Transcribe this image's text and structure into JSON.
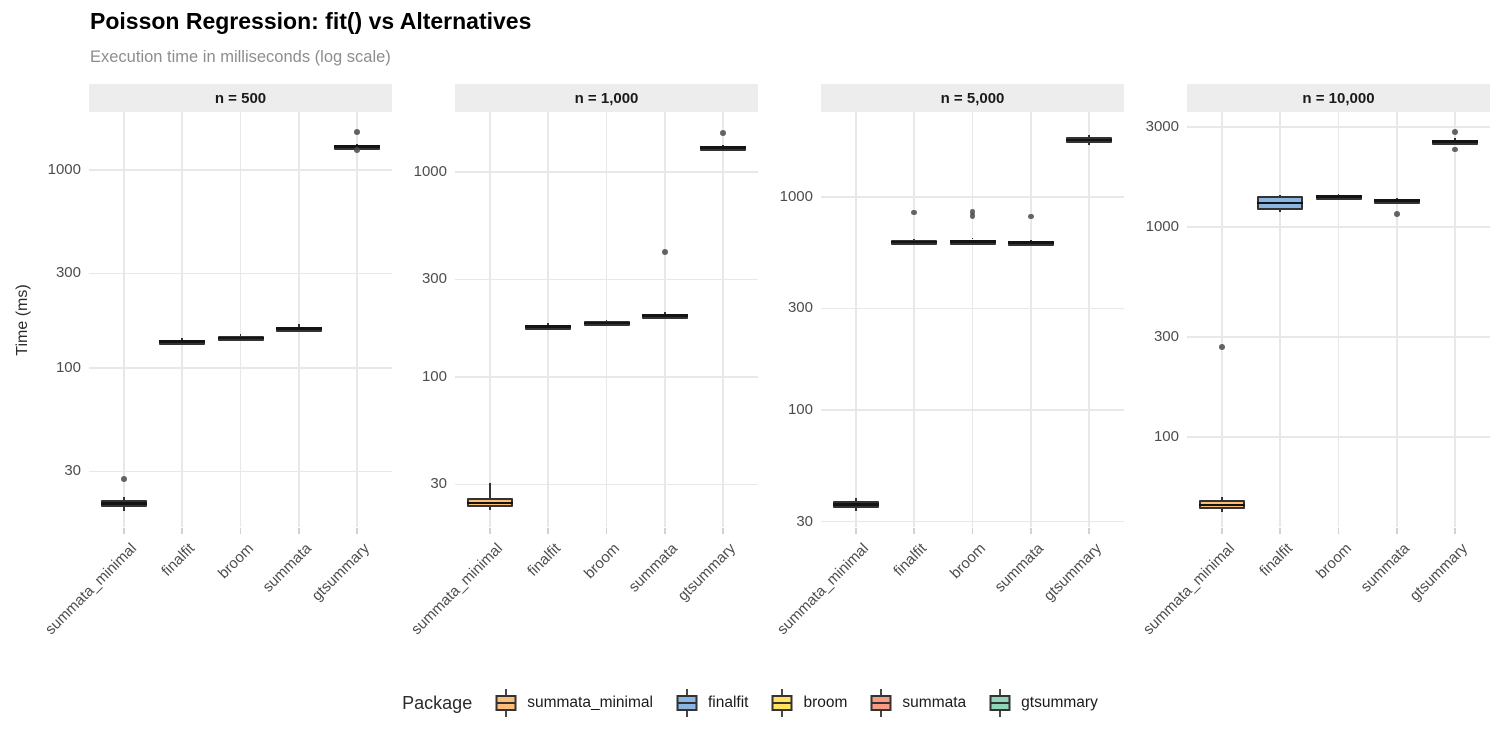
{
  "chart_data": {
    "type": "boxplot",
    "title": "Poisson Regression: fit() vs Alternatives",
    "subtitle": "Execution time in milliseconds (log scale)",
    "ylabel": "Time (ms)",
    "log_scale": true,
    "grid": true,
    "categories": [
      "summata_minimal",
      "finalfit",
      "broom",
      "summata",
      "gtsummary"
    ],
    "palette": {
      "summata_minimal": "#FCBE78",
      "finalfit": "#89B6E2",
      "broom": "#FFE45C",
      "summata": "#FA9A82",
      "gtsummary": "#90D5BA"
    },
    "legend": {
      "title": "Package",
      "position": "bottom",
      "items": [
        "summata_minimal",
        "finalfit",
        "broom",
        "summata",
        "gtsummary"
      ]
    },
    "facets": [
      {
        "label": "n = 500",
        "ylim": [
          15.7,
          1963
        ],
        "yticks": [
          1000,
          300,
          100,
          30
        ],
        "boxes": [
          {
            "package": "summata_minimal",
            "whisker_lo": 19.0,
            "q1": 19.8,
            "median": 20.6,
            "q3": 21.5,
            "whisker_hi": 22.3,
            "outliers": [
              27.5
            ]
          },
          {
            "package": "finalfit",
            "whisker_lo": 130,
            "q1": 133,
            "median": 135.5,
            "q3": 138,
            "whisker_hi": 141,
            "outliers": []
          },
          {
            "package": "broom",
            "whisker_lo": 136,
            "q1": 139,
            "median": 141.5,
            "q3": 144.5,
            "whisker_hi": 148,
            "outliers": []
          },
          {
            "package": "summata",
            "whisker_lo": 151,
            "q1": 155,
            "median": 158,
            "q3": 161.5,
            "whisker_hi": 166,
            "outliers": []
          },
          {
            "package": "gtsummary",
            "whisker_lo": 1280,
            "q1": 1295,
            "median": 1310,
            "q3": 1332,
            "whisker_hi": 1352,
            "outliers": [
              1560,
              1265
            ]
          }
        ]
      },
      {
        "label": "n = 1,000",
        "ylim": [
          18.6,
          1962
        ],
        "yticks": [
          1000,
          300,
          100,
          30
        ],
        "boxes": [
          {
            "package": "summata_minimal",
            "whisker_lo": 22.5,
            "q1": 23.2,
            "median": 24.3,
            "q3": 25.8,
            "whisker_hi": 30.5,
            "outliers": []
          },
          {
            "package": "finalfit",
            "whisker_lo": 170,
            "q1": 174,
            "median": 177,
            "q3": 180.5,
            "whisker_hi": 184,
            "outliers": []
          },
          {
            "package": "broom",
            "whisker_lo": 177,
            "q1": 181,
            "median": 184,
            "q3": 187,
            "whisker_hi": 191,
            "outliers": []
          },
          {
            "package": "summata",
            "whisker_lo": 193,
            "q1": 197,
            "median": 200,
            "q3": 204,
            "whisker_hi": 208,
            "outliers": [
              407
            ]
          },
          {
            "package": "gtsummary",
            "whisker_lo": 1285,
            "q1": 1300,
            "median": 1315,
            "q3": 1335,
            "whisker_hi": 1355,
            "outliers": [
              1555
            ]
          }
        ]
      },
      {
        "label": "n = 5,000",
        "ylim": [
          28.3,
          2506
        ],
        "yticks": [
          1000,
          300,
          100,
          30
        ],
        "boxes": [
          {
            "package": "summata_minimal",
            "whisker_lo": 33.5,
            "q1": 34.8,
            "median": 36,
            "q3": 37.5,
            "whisker_hi": 38.8,
            "outliers": []
          },
          {
            "package": "finalfit",
            "whisker_lo": 598,
            "q1": 607,
            "median": 616,
            "q3": 626,
            "whisker_hi": 636,
            "outliers": [
              845
            ]
          },
          {
            "package": "broom",
            "whisker_lo": 600,
            "q1": 610,
            "median": 620,
            "q3": 632,
            "whisker_hi": 642,
            "outliers": [
              850,
              815
            ]
          },
          {
            "package": "summata",
            "whisker_lo": 592,
            "q1": 601,
            "median": 610,
            "q3": 620,
            "whisker_hi": 630,
            "outliers": [
              810
            ]
          },
          {
            "package": "gtsummary",
            "whisker_lo": 1760,
            "q1": 1800,
            "median": 1855,
            "q3": 1920,
            "whisker_hi": 1960,
            "outliers": []
          }
        ]
      },
      {
        "label": "n = 10,000",
        "ylim": [
          37.3,
          3529
        ],
        "yticks": [
          3000,
          1000,
          300,
          100
        ],
        "boxes": [
          {
            "package": "summata_minimal",
            "whisker_lo": 44,
            "q1": 45.5,
            "median": 47.5,
            "q3": 50,
            "whisker_hi": 52,
            "outliers": [
              268
            ]
          },
          {
            "package": "finalfit",
            "whisker_lo": 1180,
            "q1": 1210,
            "median": 1300,
            "q3": 1405,
            "whisker_hi": 1425,
            "outliers": []
          },
          {
            "package": "broom",
            "whisker_lo": 1355,
            "q1": 1375,
            "median": 1395,
            "q3": 1415,
            "whisker_hi": 1435,
            "outliers": []
          },
          {
            "package": "summata",
            "whisker_lo": 1295,
            "q1": 1315,
            "median": 1335,
            "q3": 1355,
            "whisker_hi": 1375,
            "outliers": [
              1150
            ]
          },
          {
            "package": "gtsummary",
            "whisker_lo": 2470,
            "q1": 2510,
            "median": 2555,
            "q3": 2600,
            "whisker_hi": 2650,
            "outliers": [
              2830,
              2340
            ]
          }
        ]
      }
    ]
  }
}
